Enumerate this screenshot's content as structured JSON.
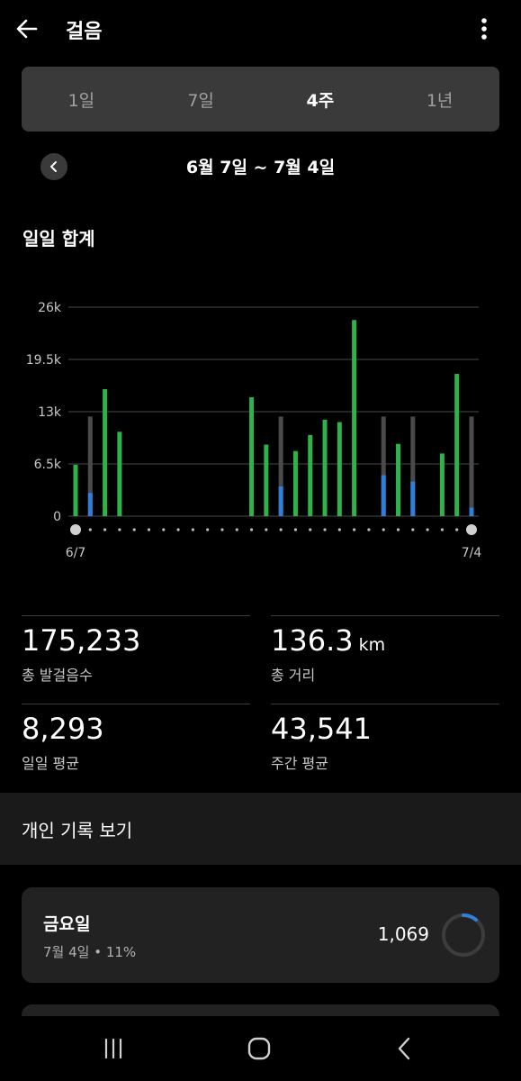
{
  "app": {
    "title": "걸음"
  },
  "segments": [
    "1일",
    "7일",
    "4주",
    "1년"
  ],
  "active_segment": "4주",
  "range": {
    "label": "6월 7일 ~ 7월 4일"
  },
  "section": {
    "title": "일일 합계"
  },
  "chart_data": {
    "type": "bar",
    "ylabels": [
      "26k",
      "19.5k",
      "13k",
      "6.5k",
      "0"
    ],
    "ylim": [
      0,
      26000
    ],
    "x_start_label": "6/7",
    "x_end_label": "7/4",
    "goal": 6000,
    "grid": true,
    "colors": {
      "goal_met": "#2db34a",
      "steps": "#2f7fd8",
      "goal_bar": "#4a4a4a"
    },
    "values": [
      6400,
      2900,
      15800,
      10500,
      0,
      0,
      0,
      0,
      0,
      0,
      0,
      0,
      14800,
      8900,
      3700,
      8100,
      10100,
      12000,
      11700,
      24400,
      0,
      5100,
      9000,
      4300,
      0,
      7800,
      17700,
      1069
    ]
  },
  "stats": {
    "total_steps": {
      "value": "175,233",
      "label": "총 발걸음수"
    },
    "distance": {
      "value": "136.3",
      "unit": "km",
      "label": "총 거리"
    },
    "daily_avg": {
      "value": "8,293",
      "label": "일일 평균"
    },
    "weekly_avg": {
      "value": "43,541",
      "label": "주간 평균"
    }
  },
  "records": {
    "title": "개인 기록 보기",
    "card": {
      "day": "금요일",
      "sub": "7월 4일 • 11%",
      "steps": "1,069",
      "progress": 0.11
    }
  },
  "icons": {
    "back": "arrow-left-icon",
    "more": "more-vertical-icon",
    "recents": "recents-icon",
    "home": "home-icon",
    "nav_back": "chevron-left-icon"
  }
}
